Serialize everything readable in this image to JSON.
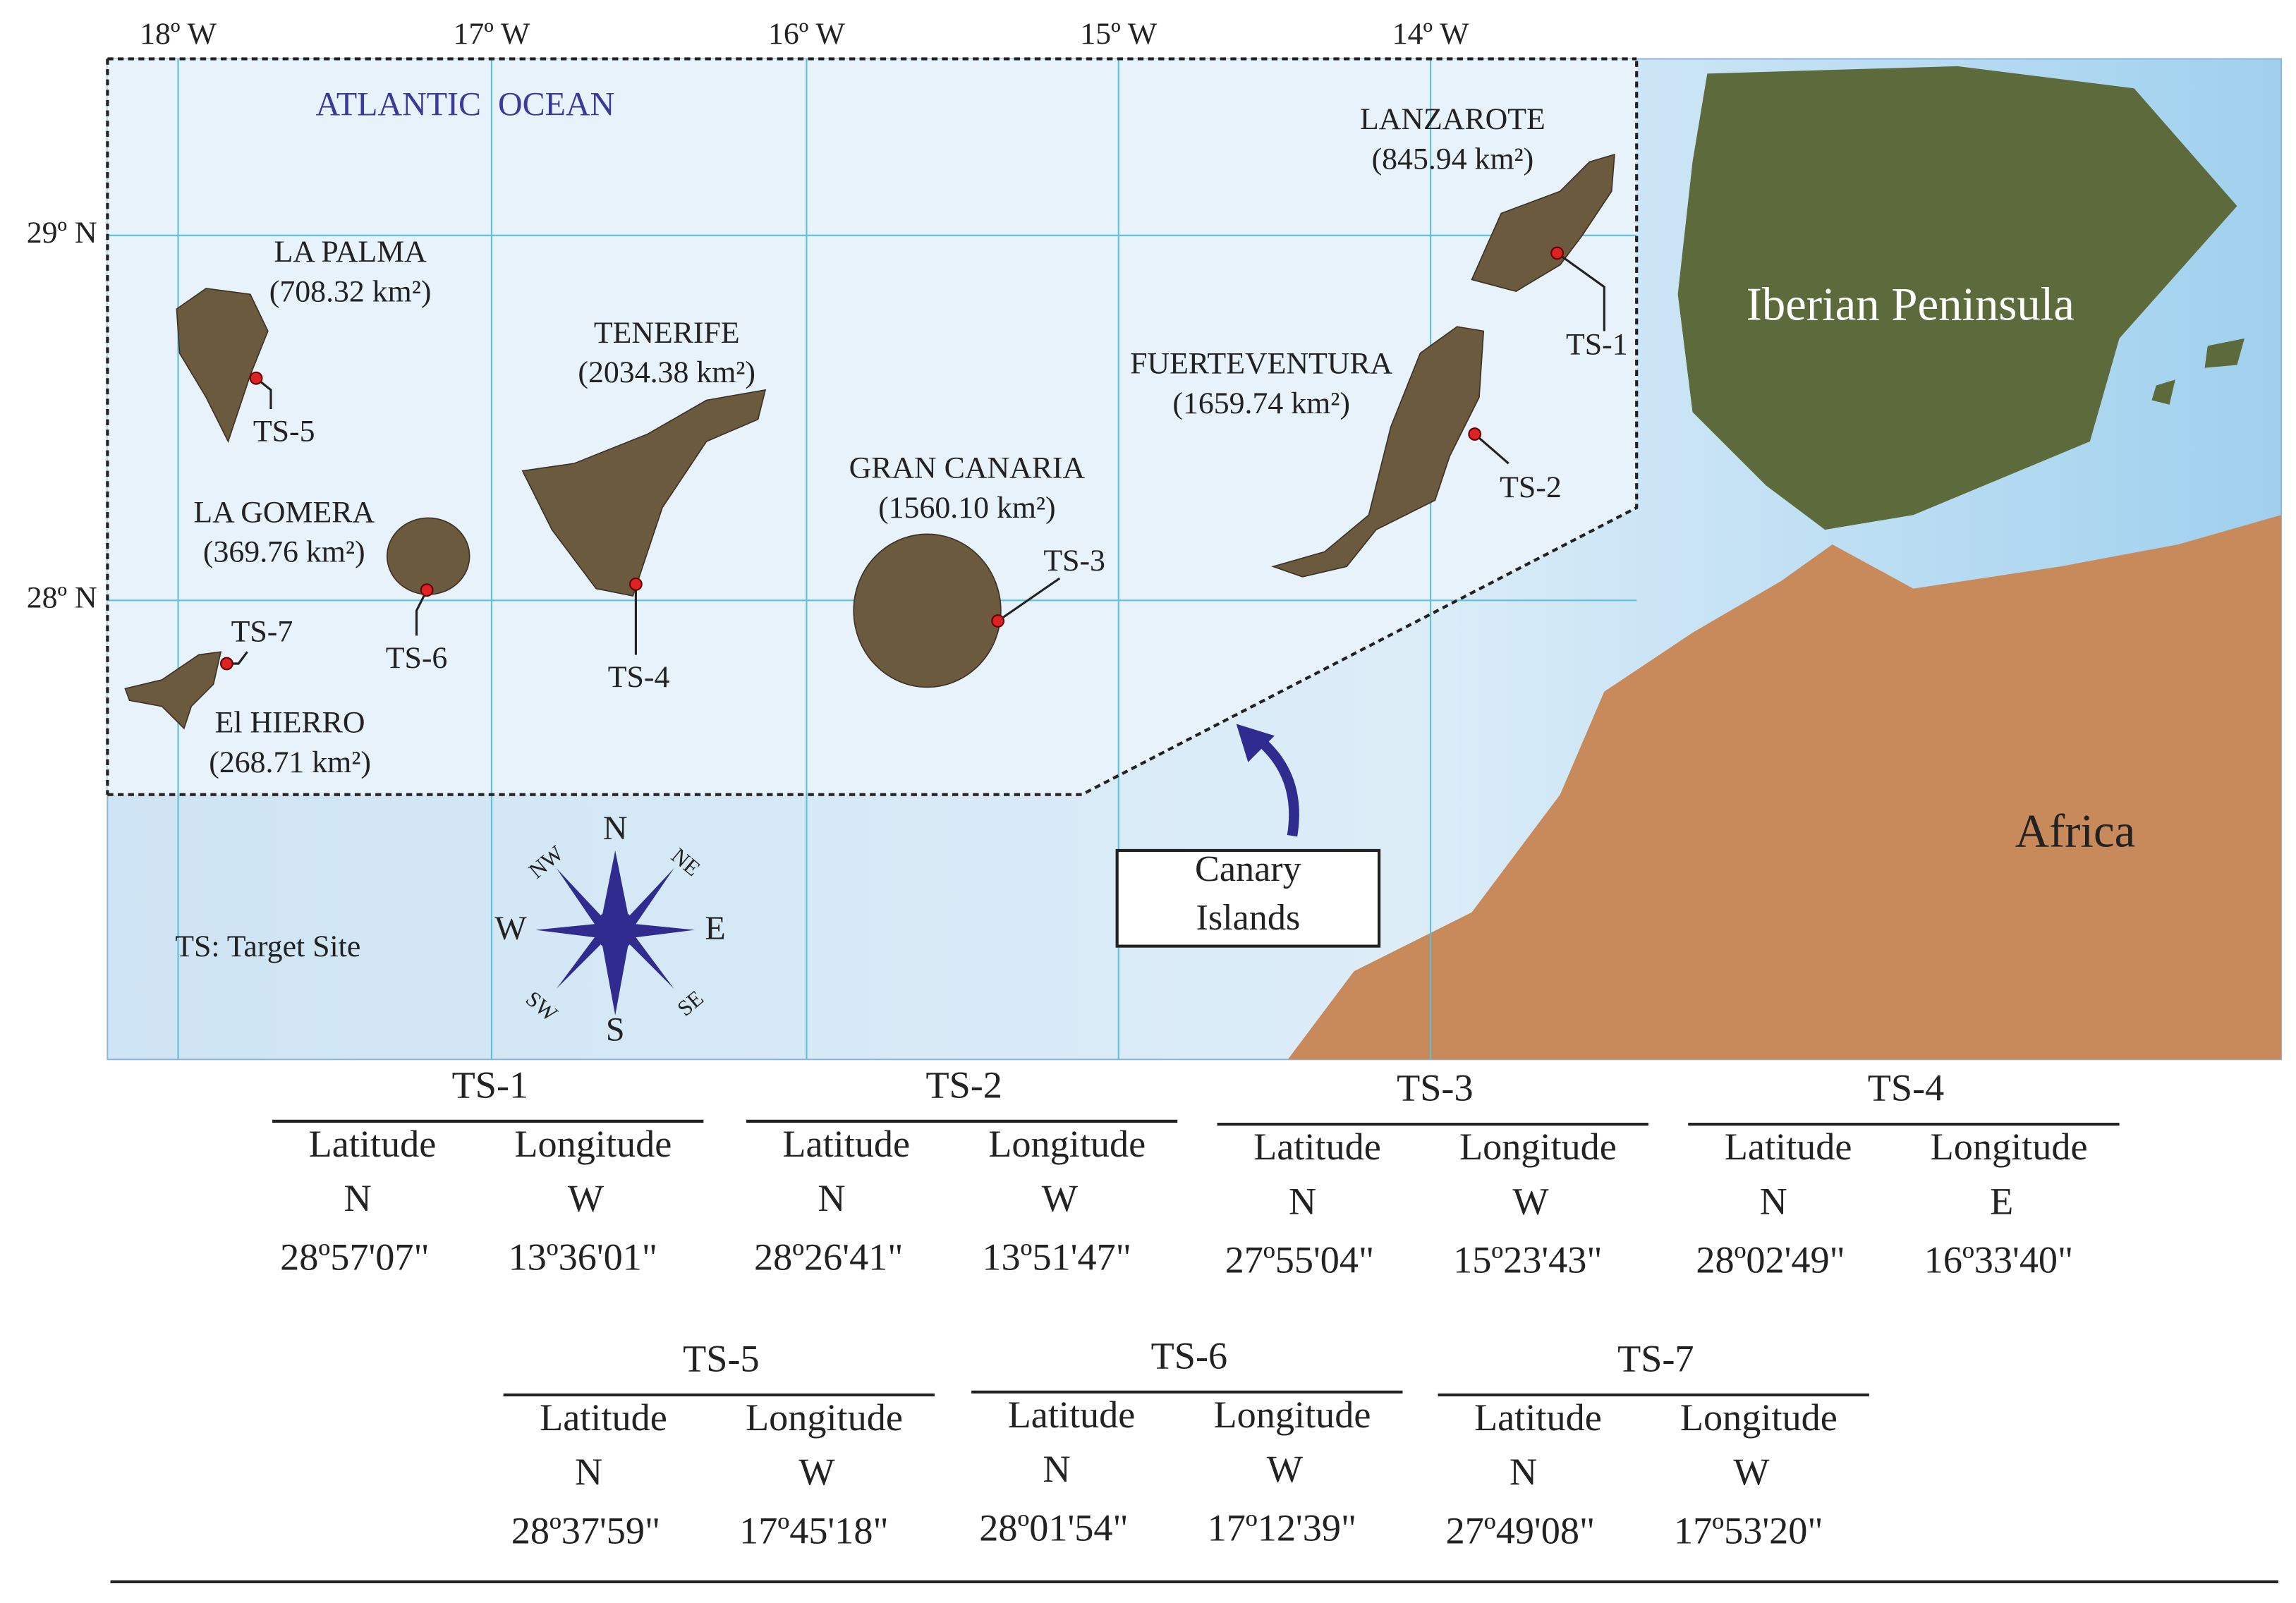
{
  "graticule": {
    "longitudes": [
      "18º W",
      "17º W",
      "16º W",
      "15º W",
      "14º W"
    ],
    "latitudes": [
      "29º N",
      "28º N"
    ]
  },
  "ocean_label": "ATLANTIC  OCEAN",
  "regions": [
    "Iberian Peninsula",
    "Africa"
  ],
  "islands": [
    {
      "name": "LANZAROTE",
      "area": "(845.94 km²)"
    },
    {
      "name": "FUERTEVENTURA",
      "area": "(1659.74 km²)"
    },
    {
      "name": "GRAN CANARIA",
      "area": "(1560.10 km²)"
    },
    {
      "name": "TENERIFE",
      "area": "(2034.38 km²)"
    },
    {
      "name": "LA PALMA",
      "area": "(708.32 km²)"
    },
    {
      "name": "LA GOMERA",
      "area": "(369.76 km²)"
    },
    {
      "name": "El HIERRO",
      "area": "(268.71 km²)"
    }
  ],
  "sites": [
    "TS-1",
    "TS-2",
    "TS-3",
    "TS-4",
    "TS-5",
    "TS-6",
    "TS-7"
  ],
  "compass": [
    "N",
    "NE",
    "E",
    "SE",
    "S",
    "SW",
    "W",
    "NW"
  ],
  "legend": "TS: Target Site",
  "inset_label": [
    "Canary",
    "Islands"
  ],
  "table": [
    {
      "site": "TS-1",
      "headers": [
        "Latitude",
        "Longitude"
      ],
      "hemispheres": [
        "N",
        "W"
      ],
      "values": [
        "28º57'07\"",
        "13º36'01\""
      ]
    },
    {
      "site": "TS-2",
      "headers": [
        "Latitude",
        "Longitude"
      ],
      "hemispheres": [
        "N",
        "W"
      ],
      "values": [
        "28º26'41\"",
        "13º51'47\""
      ]
    },
    {
      "site": "TS-3",
      "headers": [
        "Latitude",
        "Longitude"
      ],
      "hemispheres": [
        "N",
        "W"
      ],
      "values": [
        "27º55'04\"",
        "15º23'43\""
      ]
    },
    {
      "site": "TS-4",
      "headers": [
        "Latitude",
        "Longitude"
      ],
      "hemispheres": [
        "N",
        "E"
      ],
      "values": [
        "28º02'49\"",
        "16º33'40\""
      ]
    },
    {
      "site": "TS-5",
      "headers": [
        "Latitude",
        "Longitude"
      ],
      "hemispheres": [
        "N",
        "W"
      ],
      "values": [
        "28º37'59\"",
        "17º45'18\""
      ]
    },
    {
      "site": "TS-6",
      "headers": [
        "Latitude",
        "Longitude"
      ],
      "hemispheres": [
        "N",
        "W"
      ],
      "values": [
        "28º01'54\"",
        "17º12'39\""
      ]
    },
    {
      "site": "TS-7",
      "headers": [
        "Latitude",
        "Longitude"
      ],
      "hemispheres": [
        "N",
        "W"
      ],
      "values": [
        "27º49'08\"",
        "17º53'20\""
      ]
    }
  ]
}
